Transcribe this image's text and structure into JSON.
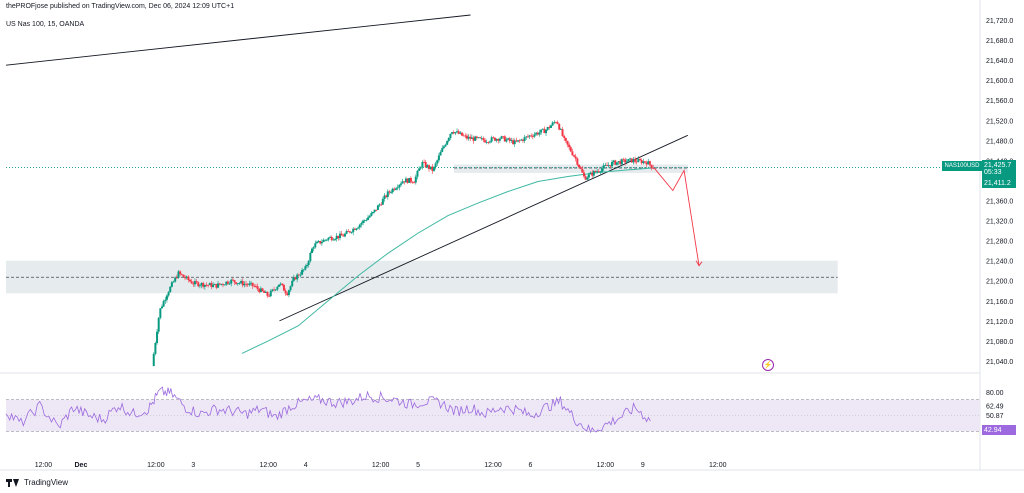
{
  "header": {
    "publisher": "thePROFjose published on TradingView.com, Dec 06, 2024 12:09 UTC+1",
    "symbol_title": "US Nas 100, 15, OANDA"
  },
  "footer": {
    "brand": "TradingView"
  },
  "colors": {
    "up": "#089981",
    "down": "#f23645",
    "ema": "#3fb9a3",
    "rsi": "#9c6ade",
    "rsi_band": "#ede7f6",
    "zone": "#d1dbe0",
    "trend": "#131722",
    "projection": "#f23645"
  },
  "icons": {
    "alert": "lightning-circle-icon",
    "logo": "tradingview-logo-icon"
  },
  "chart_data": [
    {
      "type": "candlestick",
      "title": "US Nas 100, 15, OANDA",
      "ylim": [
        21020,
        21730
      ],
      "y_ticks": [
        "21,720.0",
        "21,680.0",
        "21,640.0",
        "21,600.0",
        "21,560.0",
        "21,520.0",
        "21,480.0",
        "21,440.0",
        "21,400.0",
        "21,360.0",
        "21,320.0",
        "21,280.0",
        "21,240.0",
        "21,200.0",
        "21,160.0",
        "21,120.0",
        "21,080.0",
        "21,040.0"
      ],
      "x_ticks": [
        "12:00",
        "Dec",
        "12:00",
        "3",
        "12:00",
        "4",
        "12:00",
        "5",
        "12:00",
        "6",
        "12:00",
        "9",
        "12:00"
      ],
      "x_domain": [
        0,
        13
      ],
      "x_tick_positions": [
        0.5,
        1.0,
        2.0,
        2.5,
        3.5,
        4.0,
        5.0,
        5.5,
        6.5,
        7.0,
        8.0,
        8.5,
        9.5
      ],
      "price_path": [
        [
          1.95,
          21030
        ],
        [
          2.05,
          21140
        ],
        [
          2.15,
          21175
        ],
        [
          2.3,
          21215
        ],
        [
          2.5,
          21195
        ],
        [
          2.8,
          21190
        ],
        [
          3.0,
          21200
        ],
        [
          3.3,
          21190
        ],
        [
          3.5,
          21170
        ],
        [
          3.65,
          21195
        ],
        [
          3.75,
          21175
        ],
        [
          3.85,
          21205
        ],
        [
          4.0,
          21225
        ],
        [
          4.1,
          21270
        ],
        [
          4.3,
          21285
        ],
        [
          4.5,
          21290
        ],
        [
          4.7,
          21310
        ],
        [
          4.9,
          21335
        ],
        [
          5.1,
          21375
        ],
        [
          5.3,
          21400
        ],
        [
          5.45,
          21400
        ],
        [
          5.55,
          21435
        ],
        [
          5.7,
          21420
        ],
        [
          5.8,
          21455
        ],
        [
          5.95,
          21500
        ],
        [
          6.15,
          21485
        ],
        [
          6.4,
          21480
        ],
        [
          6.6,
          21485
        ],
        [
          6.8,
          21475
        ],
        [
          7.0,
          21490
        ],
        [
          7.2,
          21500
        ],
        [
          7.35,
          21520
        ],
        [
          7.45,
          21480
        ],
        [
          7.6,
          21445
        ],
        [
          7.72,
          21405
        ],
        [
          7.9,
          21420
        ],
        [
          8.1,
          21435
        ],
        [
          8.35,
          21440
        ],
        [
          8.55,
          21437
        ],
        [
          8.65,
          21425
        ]
      ],
      "ema": [
        [
          3.15,
          21055
        ],
        [
          3.5,
          21080
        ],
        [
          3.9,
          21110
        ],
        [
          4.3,
          21160
        ],
        [
          4.7,
          21210
        ],
        [
          5.1,
          21255
        ],
        [
          5.5,
          21295
        ],
        [
          5.9,
          21330
        ],
        [
          6.3,
          21355
        ],
        [
          6.7,
          21378
        ],
        [
          7.1,
          21398
        ],
        [
          7.5,
          21408
        ],
        [
          7.9,
          21416
        ],
        [
          8.3,
          21421
        ],
        [
          8.65,
          21425
        ]
      ],
      "trendlines": [
        {
          "from": [
            0.0,
            21630
          ],
          "to": [
            6.2,
            21730
          ]
        },
        {
          "from": [
            3.65,
            21120
          ],
          "to": [
            9.1,
            21490
          ]
        }
      ],
      "zones": [
        {
          "y0": 21415,
          "y1": 21432,
          "x0": 5.98,
          "x1": 9.1
        },
        {
          "y0": 21175,
          "y1": 21240,
          "x0": 0,
          "x1": 11.1
        }
      ],
      "dashed_levels": [
        {
          "y": 21425,
          "x0": 5.98,
          "x1": 9.1
        },
        {
          "y": 21207,
          "x0": 0,
          "x1": 11.1
        }
      ],
      "current_price_line": 21425.7,
      "projection": [
        [
          8.65,
          21425
        ],
        [
          8.9,
          21380
        ],
        [
          9.05,
          21420
        ],
        [
          9.25,
          21230
        ]
      ],
      "price_labels": [
        {
          "text": "21,425.7",
          "sub": "05:33",
          "value": 21425.7,
          "color": "#089981"
        },
        {
          "text": "21,411.2",
          "value": 21411.2,
          "color": "#089981"
        }
      ],
      "symbol_badge": "NAS100USD"
    },
    {
      "type": "line",
      "name": "RSI",
      "ylim": [
        0,
        100
      ],
      "levels": [
        70,
        30
      ],
      "y_ticks": [
        "80.00",
        "62.49",
        "50.87"
      ],
      "last_value_label": "42.94",
      "last_value": 42.94,
      "series": [
        [
          0.0,
          55
        ],
        [
          0.2,
          40
        ],
        [
          0.45,
          62
        ],
        [
          0.7,
          35
        ],
        [
          0.9,
          60
        ],
        [
          1.1,
          50
        ],
        [
          1.3,
          45
        ],
        [
          1.5,
          63
        ],
        [
          1.7,
          52
        ],
        [
          1.9,
          58
        ],
        [
          2.05,
          80
        ],
        [
          2.2,
          78
        ],
        [
          2.4,
          60
        ],
        [
          2.6,
          52
        ],
        [
          2.8,
          58
        ],
        [
          3.0,
          56
        ],
        [
          3.2,
          52
        ],
        [
          3.4,
          58
        ],
        [
          3.6,
          48
        ],
        [
          3.8,
          62
        ],
        [
          4.0,
          68
        ],
        [
          4.2,
          70
        ],
        [
          4.4,
          66
        ],
        [
          4.6,
          68
        ],
        [
          4.8,
          75
        ],
        [
          5.0,
          73
        ],
        [
          5.2,
          70
        ],
        [
          5.4,
          64
        ],
        [
          5.6,
          68
        ],
        [
          5.8,
          66
        ],
        [
          6.0,
          55
        ],
        [
          6.2,
          60
        ],
        [
          6.4,
          52
        ],
        [
          6.6,
          60
        ],
        [
          6.8,
          58
        ],
        [
          7.0,
          50
        ],
        [
          7.2,
          60
        ],
        [
          7.4,
          68
        ],
        [
          7.6,
          45
        ],
        [
          7.8,
          30
        ],
        [
          8.0,
          38
        ],
        [
          8.2,
          48
        ],
        [
          8.4,
          60
        ],
        [
          8.6,
          42.94
        ]
      ]
    }
  ]
}
